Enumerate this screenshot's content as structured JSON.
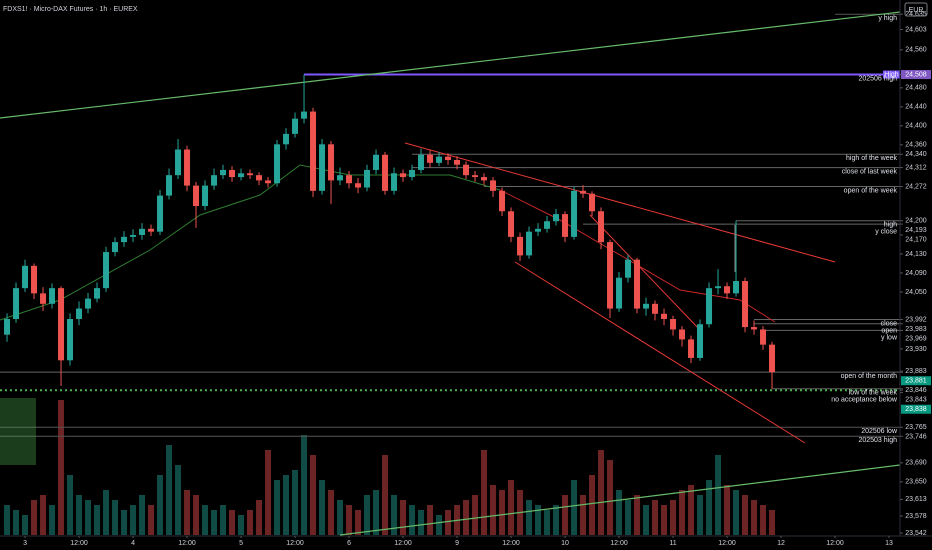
{
  "chart_data": {
    "type": "candlestick",
    "title": "FDXS1! · Micro-DAX Futures · 1h · EUREX",
    "currency": "EUR",
    "up_color": "#26a69a",
    "down_color": "#ef5350",
    "x": [
      -4,
      -2,
      0,
      2,
      4,
      6,
      8,
      10,
      12,
      14,
      16,
      18,
      20,
      22,
      24,
      26,
      28,
      30,
      32,
      34,
      36,
      38,
      40,
      42,
      44,
      46,
      48,
      50,
      52,
      54,
      56,
      58,
      60,
      62,
      64,
      66,
      68,
      70,
      72,
      74,
      76,
      78,
      80,
      82,
      84,
      86,
      88,
      90,
      92,
      94,
      96,
      98,
      100,
      102,
      104,
      106,
      108,
      110,
      112,
      114,
      116,
      118,
      120,
      122,
      124,
      126,
      128,
      130,
      132,
      134,
      136,
      138,
      140,
      142,
      144,
      146,
      148,
      150,
      152,
      154,
      156,
      158,
      160,
      162,
      164,
      166
    ],
    "open": [
      23960,
      23993,
      24058,
      24105,
      24047,
      24025,
      24058,
      23906,
      23993,
      24015,
      24036,
      24058,
      24134,
      24155,
      24166,
      24170,
      24183,
      24177,
      24253,
      24296,
      24350,
      24274,
      24231,
      24274,
      24296,
      24307,
      24292,
      24300,
      24296,
      24285,
      24279,
      24361,
      24383,
      24415,
      24430,
      24263,
      24361,
      24285,
      24296,
      24279,
      24270,
      24307,
      24339,
      24263,
      24300,
      24292,
      24307,
      24339,
      24322,
      24335,
      24328,
      24318,
      24296,
      24292,
      24285,
      24263,
      24220,
      24166,
      24127,
      24177,
      24183,
      24199,
      24214,
      24166,
      24263,
      24257,
      24220,
      24155,
      24015,
      24080,
      24118,
      24015,
      24025,
      24004,
      23993,
      23971,
      23950,
      23911,
      23982,
      24058,
      24062,
      24047,
      24073,
      23976,
      23971,
      23939
    ],
    "high": [
      24005,
      24070,
      24118,
      24110,
      24060,
      24068,
      24062,
      24005,
      24030,
      24048,
      24070,
      24145,
      24165,
      24178,
      24182,
      24195,
      24192,
      24265,
      24310,
      24372,
      24358,
      24282,
      24285,
      24310,
      24318,
      24315,
      24310,
      24308,
      24302,
      24292,
      24370,
      24395,
      24428,
      24508,
      24438,
      24372,
      24368,
      24312,
      24305,
      24290,
      24318,
      24350,
      24345,
      24312,
      24308,
      24318,
      24352,
      24348,
      24345,
      24342,
      24336,
      24325,
      24305,
      24300,
      24292,
      24270,
      24228,
      24175,
      24188,
      24195,
      24210,
      24225,
      24220,
      24272,
      24275,
      24262,
      24228,
      24160,
      24092,
      24128,
      24122,
      24038,
      24032,
      24015,
      24000,
      23978,
      23958,
      23992,
      24070,
      24098,
      24070,
      24200,
      24080,
      23990,
      23978,
      23945
    ],
    "low": [
      23945,
      23985,
      24050,
      24035,
      24010,
      24015,
      23852,
      23895,
      23980,
      24005,
      24028,
      24050,
      24125,
      24145,
      24155,
      24160,
      24168,
      24170,
      24245,
      24288,
      24262,
      24185,
      24222,
      24265,
      24288,
      24282,
      24285,
      24288,
      24275,
      24270,
      24272,
      24350,
      24375,
      24405,
      24250,
      24255,
      24235,
      24275,
      24268,
      24258,
      24262,
      24298,
      24255,
      24255,
      24282,
      24285,
      24300,
      24312,
      24315,
      24318,
      24308,
      24288,
      24282,
      24275,
      24250,
      24210,
      24155,
      24115,
      24120,
      24168,
      24175,
      24190,
      24155,
      24160,
      24248,
      24210,
      24140,
      23995,
      24008,
      24070,
      24005,
      24000,
      23990,
      23980,
      23958,
      23935,
      23900,
      23905,
      23975,
      24045,
      24035,
      24040,
      23965,
      23960,
      23928,
      23846
    ],
    "close": [
      23993,
      24058,
      24105,
      24047,
      24025,
      24058,
      23906,
      23993,
      24015,
      24036,
      24058,
      24134,
      24155,
      24166,
      24170,
      24183,
      24177,
      24253,
      24296,
      24350,
      24274,
      24231,
      24274,
      24296,
      24307,
      24292,
      24300,
      24296,
      24285,
      24279,
      24361,
      24383,
      24415,
      24430,
      24263,
      24361,
      24285,
      24296,
      24279,
      24270,
      24307,
      24339,
      24263,
      24300,
      24292,
      24307,
      24339,
      24322,
      24335,
      24328,
      24318,
      24296,
      24292,
      24285,
      24263,
      24220,
      24166,
      24127,
      24177,
      24183,
      24199,
      24214,
      24166,
      24263,
      24257,
      24220,
      24155,
      24015,
      24080,
      24118,
      24015,
      24025,
      24004,
      23993,
      23971,
      23950,
      23911,
      23982,
      24058,
      24062,
      24047,
      24073,
      23976,
      23971,
      23939,
      23881
    ],
    "volume": [
      30,
      25,
      20,
      35,
      40,
      30,
      135,
      60,
      40,
      35,
      30,
      45,
      35,
      25,
      30,
      40,
      30,
      60,
      90,
      70,
      45,
      40,
      30,
      25,
      30,
      25,
      20,
      25,
      35,
      85,
      55,
      60,
      65,
      100,
      80,
      55,
      45,
      35,
      30,
      25,
      40,
      45,
      80,
      40,
      35,
      30,
      25,
      30,
      20,
      25,
      30,
      35,
      40,
      85,
      50,
      45,
      55,
      45,
      35,
      30,
      25,
      30,
      40,
      55,
      40,
      60,
      85,
      75,
      45,
      35,
      40,
      30,
      35,
      30,
      35,
      45,
      50,
      40,
      55,
      80,
      50,
      45,
      40,
      35,
      30,
      25
    ],
    "xlim": [
      -5.56,
      194.44
    ],
    "xticks": [
      {
        "value": 0,
        "label": "3"
      },
      {
        "value": 12,
        "label": "12:00"
      },
      {
        "value": 24,
        "label": "4"
      },
      {
        "value": 36,
        "label": "12:00"
      },
      {
        "value": 48,
        "label": "5"
      },
      {
        "value": 60,
        "label": "12:00"
      },
      {
        "value": 72,
        "label": "6"
      },
      {
        "value": 84,
        "label": "12:00"
      },
      {
        "value": 96,
        "label": "9"
      },
      {
        "value": 108,
        "label": "12:00"
      },
      {
        "value": 120,
        "label": "10"
      },
      {
        "value": 132,
        "label": "12:00"
      },
      {
        "value": 144,
        "label": "11"
      },
      {
        "value": 156,
        "label": "12:00"
      },
      {
        "value": 168,
        "label": "12"
      },
      {
        "value": 180,
        "label": "12:00"
      },
      {
        "value": 192,
        "label": "13"
      }
    ],
    "ylim": [
      23538,
      24665
    ],
    "yticks": [
      {
        "value": 24635,
        "label": "24,635"
      },
      {
        "value": 24603,
        "label": "24,603"
      },
      {
        "value": 24560,
        "label": "24,560"
      },
      {
        "value": 24508,
        "label": "24,508",
        "bg": "#7e57c2"
      },
      {
        "value": 24480,
        "label": "24,480"
      },
      {
        "value": 24440,
        "label": "24,440"
      },
      {
        "value": 24400,
        "label": "24,400"
      },
      {
        "value": 24360,
        "label": "24,360"
      },
      {
        "value": 24340,
        "label": "24,340"
      },
      {
        "value": 24312,
        "label": "24,312"
      },
      {
        "value": 24272,
        "label": "24,272"
      },
      {
        "value": 24200,
        "label": "24,200"
      },
      {
        "value": 24193,
        "label": "24,193"
      },
      {
        "value": 24170,
        "label": "24,170"
      },
      {
        "value": 24130,
        "label": "24,130"
      },
      {
        "value": 24090,
        "label": "24,090"
      },
      {
        "value": 24050,
        "label": "24,050"
      },
      {
        "value": 23992,
        "label": "23,992"
      },
      {
        "value": 23983,
        "label": "23,983"
      },
      {
        "value": 23969,
        "label": "23,969"
      },
      {
        "value": 23930,
        "label": "23,930"
      },
      {
        "value": 23883,
        "label": "23,883"
      },
      {
        "value": 23881,
        "label": "23,881",
        "bg": "#089981"
      },
      {
        "value": 23846,
        "label": "23,846"
      },
      {
        "value": 23843,
        "label": "23,843"
      },
      {
        "value": 23838,
        "label": "23,838",
        "bg": "#089981"
      },
      {
        "value": 23765,
        "label": "23,765"
      },
      {
        "value": 23746,
        "label": "23,746"
      },
      {
        "value": 23690,
        "label": "23,690"
      },
      {
        "value": 23650,
        "label": "23,650"
      },
      {
        "value": 23613,
        "label": "23,613"
      },
      {
        "value": 23578,
        "label": "23,578"
      },
      {
        "value": 23542,
        "label": "23,542"
      }
    ],
    "levels": [
      {
        "value": 24635,
        "label": "y high",
        "from": 180,
        "color": "#555"
      },
      {
        "value": 24508,
        "label": "202506 high",
        "tag": "High",
        "from": 62,
        "color": "#7e57ff",
        "width": 2
      },
      {
        "value": 24340,
        "label": "high of the week",
        "from": 86,
        "color": "#666"
      },
      {
        "value": 24312,
        "label": "close of last week",
        "from": 86,
        "color": "#666"
      },
      {
        "value": 24272,
        "label": "open of the week",
        "from": 102,
        "color": "#666"
      },
      {
        "value": 24200,
        "label": "high",
        "from": 158,
        "color": "#666"
      },
      {
        "value": 24193,
        "label": "y close",
        "from": 124,
        "color": "#666"
      },
      {
        "value": 23992,
        "label": "close",
        "from": 162,
        "color": "#666"
      },
      {
        "value": 23983,
        "label": "open",
        "from": 162,
        "color": "#666"
      },
      {
        "value": 23969,
        "label": "y low",
        "from": 164,
        "color": "#666"
      },
      {
        "value": 23881,
        "label": "open of the month",
        "from": -5.56,
        "color": "#666"
      },
      {
        "value": 23846,
        "label": "low of the week",
        "from": 166,
        "color": "#666"
      },
      {
        "value": 23843,
        "label": "no acceptance below",
        "from": -5.56,
        "color": "#4caf50",
        "dash": "2,3",
        "width": 2
      },
      {
        "value": 23765,
        "label": "202506 low",
        "from": -5.56,
        "color": "#555"
      },
      {
        "value": 23746,
        "label": "202503 high",
        "from": -5.56,
        "color": "#555"
      }
    ]
  }
}
